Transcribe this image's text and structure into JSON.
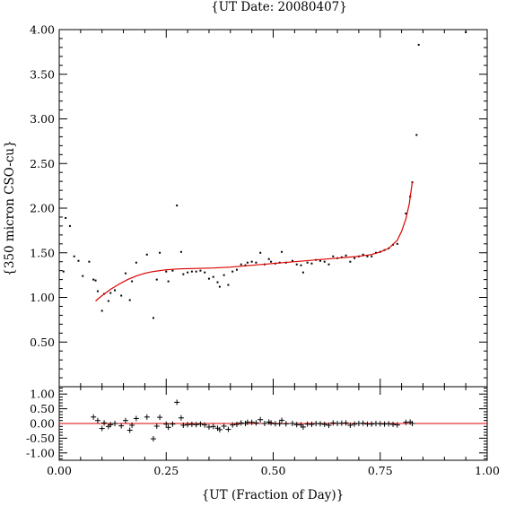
{
  "chart_data": [
    {
      "type": "scatter",
      "title": "{UT Date: 20080407}",
      "xlabel": "",
      "ylabel": "{350 micron CSO-cu}",
      "xlim": [
        0.0,
        1.0
      ],
      "ylim": [
        0.0,
        4.0
      ],
      "xticks": [
        0.0,
        0.25,
        0.5,
        0.75,
        1.0
      ],
      "yticks": [
        "0.50",
        "1.00",
        "1.50",
        "2.00",
        "2.50",
        "3.00",
        "3.50",
        "4.00"
      ],
      "yticks_values": [
        0.5,
        1.0,
        1.5,
        2.0,
        2.5,
        3.0,
        3.5,
        4.0
      ],
      "series": [
        {
          "marker": "dot",
          "color": "#000000",
          "points": [
            [
              0.01,
              1.29
            ],
            [
              0.015,
              1.89
            ],
            [
              0.025,
              1.8
            ],
            [
              0.035,
              1.46
            ],
            [
              0.045,
              1.41
            ],
            [
              0.055,
              1.24
            ],
            [
              0.07,
              1.4
            ],
            [
              0.08,
              1.2
            ],
            [
              0.085,
              1.19
            ],
            [
              0.09,
              1.07
            ],
            [
              0.1,
              0.85
            ],
            [
              0.105,
              1.04
            ],
            [
              0.115,
              0.96
            ],
            [
              0.12,
              1.05
            ],
            [
              0.13,
              1.08
            ],
            [
              0.145,
              1.02
            ],
            [
              0.155,
              1.27
            ],
            [
              0.165,
              0.97
            ],
            [
              0.17,
              1.18
            ],
            [
              0.18,
              1.39
            ],
            [
              0.205,
              1.48
            ],
            [
              0.22,
              0.77
            ],
            [
              0.228,
              1.2
            ],
            [
              0.235,
              1.5
            ],
            [
              0.25,
              1.29
            ],
            [
              0.255,
              1.18
            ],
            [
              0.265,
              1.3
            ],
            [
              0.275,
              2.03
            ],
            [
              0.285,
              1.51
            ],
            [
              0.29,
              1.26
            ],
            [
              0.3,
              1.28
            ],
            [
              0.31,
              1.29
            ],
            [
              0.32,
              1.29
            ],
            [
              0.33,
              1.3
            ],
            [
              0.34,
              1.28
            ],
            [
              0.35,
              1.21
            ],
            [
              0.36,
              1.23
            ],
            [
              0.37,
              1.17
            ],
            [
              0.375,
              1.12
            ],
            [
              0.385,
              1.25
            ],
            [
              0.395,
              1.14
            ],
            [
              0.405,
              1.29
            ],
            [
              0.415,
              1.31
            ],
            [
              0.425,
              1.37
            ],
            [
              0.435,
              1.36
            ],
            [
              0.44,
              1.39
            ],
            [
              0.45,
              1.4
            ],
            [
              0.46,
              1.39
            ],
            [
              0.47,
              1.5
            ],
            [
              0.48,
              1.37
            ],
            [
              0.49,
              1.43
            ],
            [
              0.495,
              1.4
            ],
            [
              0.505,
              1.38
            ],
            [
              0.515,
              1.39
            ],
            [
              0.52,
              1.51
            ],
            [
              0.53,
              1.39
            ],
            [
              0.545,
              1.41
            ],
            [
              0.555,
              1.37
            ],
            [
              0.565,
              1.36
            ],
            [
              0.57,
              1.28
            ],
            [
              0.58,
              1.39
            ],
            [
              0.59,
              1.38
            ],
            [
              0.6,
              1.42
            ],
            [
              0.61,
              1.41
            ],
            [
              0.62,
              1.4
            ],
            [
              0.63,
              1.37
            ],
            [
              0.64,
              1.46
            ],
            [
              0.65,
              1.44
            ],
            [
              0.66,
              1.45
            ],
            [
              0.67,
              1.47
            ],
            [
              0.68,
              1.4
            ],
            [
              0.69,
              1.44
            ],
            [
              0.7,
              1.46
            ],
            [
              0.71,
              1.48
            ],
            [
              0.72,
              1.46
            ],
            [
              0.73,
              1.46
            ],
            [
              0.74,
              1.5
            ],
            [
              0.75,
              1.51
            ],
            [
              0.76,
              1.53
            ],
            [
              0.77,
              1.55
            ],
            [
              0.78,
              1.59
            ],
            [
              0.79,
              1.6
            ],
            [
              0.81,
              1.94
            ],
            [
              0.82,
              2.13
            ],
            [
              0.825,
              2.29
            ],
            [
              0.835,
              2.82
            ],
            [
              0.84,
              3.83
            ],
            [
              0.95,
              3.97
            ]
          ]
        },
        {
          "marker": "line",
          "color": "#dd0000",
          "points": [
            [
              0.085,
              0.96
            ],
            [
              0.1,
              1.02
            ],
            [
              0.12,
              1.09
            ],
            [
              0.14,
              1.15
            ],
            [
              0.16,
              1.2
            ],
            [
              0.18,
              1.24
            ],
            [
              0.2,
              1.27
            ],
            [
              0.22,
              1.29
            ],
            [
              0.25,
              1.31
            ],
            [
              0.28,
              1.32
            ],
            [
              0.32,
              1.325
            ],
            [
              0.36,
              1.33
            ],
            [
              0.4,
              1.34
            ],
            [
              0.45,
              1.36
            ],
            [
              0.5,
              1.38
            ],
            [
              0.55,
              1.4
            ],
            [
              0.6,
              1.42
            ],
            [
              0.65,
              1.44
            ],
            [
              0.7,
              1.46
            ],
            [
              0.73,
              1.48
            ],
            [
              0.75,
              1.51
            ],
            [
              0.77,
              1.55
            ],
            [
              0.79,
              1.64
            ],
            [
              0.8,
              1.74
            ],
            [
              0.81,
              1.88
            ],
            [
              0.818,
              2.05
            ],
            [
              0.825,
              2.29
            ]
          ]
        }
      ]
    },
    {
      "type": "scatter",
      "title": "",
      "xlabel": "{UT (Fraction of Day)}",
      "ylabel": "",
      "xlim": [
        0.0,
        1.0
      ],
      "ylim": [
        -1.25,
        1.25
      ],
      "xticks": [
        "0.00",
        "0.25",
        "0.50",
        "0.75",
        "1.00"
      ],
      "xticks_values": [
        0.0,
        0.25,
        0.5,
        0.75,
        1.0
      ],
      "yticks": [
        "-1.00",
        "-0.50",
        "0.00",
        "0.50",
        "1.00"
      ],
      "yticks_values": [
        -1.0,
        -0.5,
        0.0,
        0.5,
        1.0
      ],
      "zero_line_color": "#dd0000",
      "series": [
        {
          "marker": "plus",
          "color": "#000000",
          "points": [
            [
              0.08,
              0.22
            ],
            [
              0.09,
              0.1
            ],
            [
              0.1,
              -0.17
            ],
            [
              0.105,
              0.02
            ],
            [
              0.115,
              -0.1
            ],
            [
              0.12,
              -0.04
            ],
            [
              0.13,
              0.0
            ],
            [
              0.145,
              -0.08
            ],
            [
              0.155,
              0.1
            ],
            [
              0.165,
              -0.23
            ],
            [
              0.17,
              -0.06
            ],
            [
              0.18,
              0.17
            ],
            [
              0.205,
              0.22
            ],
            [
              0.22,
              -0.52
            ],
            [
              0.228,
              -0.09
            ],
            [
              0.235,
              0.21
            ],
            [
              0.25,
              -0.02
            ],
            [
              0.255,
              -0.13
            ],
            [
              0.265,
              -0.02
            ],
            [
              0.275,
              0.72
            ],
            [
              0.285,
              0.19
            ],
            [
              0.29,
              -0.06
            ],
            [
              0.3,
              -0.04
            ],
            [
              0.31,
              -0.03
            ],
            [
              0.32,
              -0.04
            ],
            [
              0.33,
              -0.02
            ],
            [
              0.34,
              -0.05
            ],
            [
              0.35,
              -0.12
            ],
            [
              0.36,
              -0.1
            ],
            [
              0.37,
              -0.16
            ],
            [
              0.375,
              -0.21
            ],
            [
              0.385,
              -0.09
            ],
            [
              0.395,
              -0.2
            ],
            [
              0.405,
              -0.05
            ],
            [
              0.415,
              -0.03
            ],
            [
              0.425,
              0.02
            ],
            [
              0.435,
              0.0
            ],
            [
              0.44,
              0.04
            ],
            [
              0.45,
              0.04
            ],
            [
              0.46,
              0.02
            ],
            [
              0.47,
              0.13
            ],
            [
              0.48,
              0.0
            ],
            [
              0.49,
              0.05
            ],
            [
              0.495,
              0.02
            ],
            [
              0.505,
              -0.01
            ],
            [
              0.515,
              -0.01
            ],
            [
              0.52,
              0.11
            ],
            [
              0.53,
              -0.01
            ],
            [
              0.545,
              0.0
            ],
            [
              0.555,
              -0.04
            ],
            [
              0.565,
              -0.05
            ],
            [
              0.57,
              -0.12
            ],
            [
              0.58,
              -0.02
            ],
            [
              0.59,
              -0.03
            ],
            [
              0.6,
              0.0
            ],
            [
              0.61,
              -0.01
            ],
            [
              0.62,
              -0.03
            ],
            [
              0.63,
              -0.06
            ],
            [
              0.64,
              0.02
            ],
            [
              0.65,
              0.0
            ],
            [
              0.66,
              0.01
            ],
            [
              0.67,
              0.02
            ],
            [
              0.68,
              -0.06
            ],
            [
              0.69,
              -0.02
            ],
            [
              0.7,
              0.0
            ],
            [
              0.71,
              0.01
            ],
            [
              0.72,
              -0.02
            ],
            [
              0.73,
              -0.02
            ],
            [
              0.74,
              0.0
            ],
            [
              0.75,
              -0.01
            ],
            [
              0.76,
              -0.02
            ],
            [
              0.77,
              -0.01
            ],
            [
              0.78,
              -0.03
            ],
            [
              0.79,
              -0.05
            ],
            [
              0.81,
              0.04
            ],
            [
              0.82,
              0.05
            ],
            [
              0.825,
              0.0
            ]
          ]
        }
      ]
    }
  ]
}
